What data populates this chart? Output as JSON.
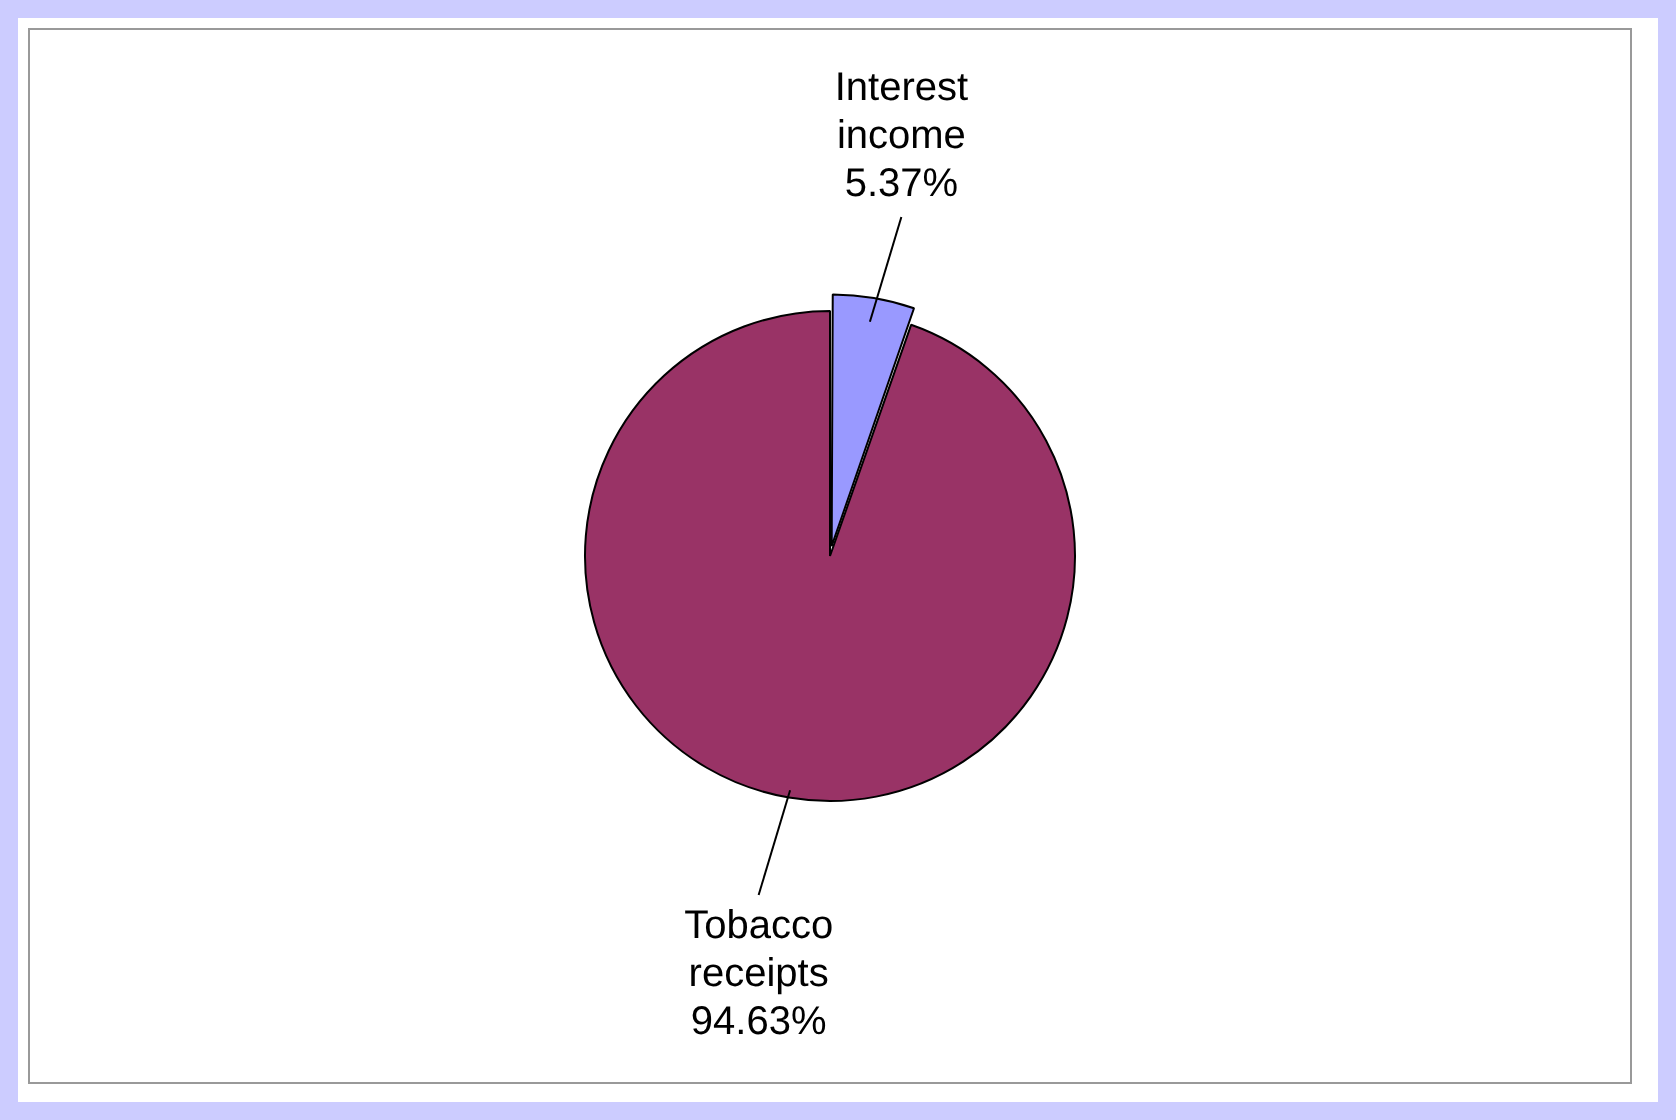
{
  "chart_data": {
    "type": "pie",
    "categories": [
      "Interest income",
      "Tobacco receipts"
    ],
    "values": [
      5.37,
      94.63
    ],
    "colors": [
      "#9999ff",
      "#993366"
    ],
    "value_labels": [
      "5.37%",
      "94.63%"
    ],
    "legend": false
  }
}
